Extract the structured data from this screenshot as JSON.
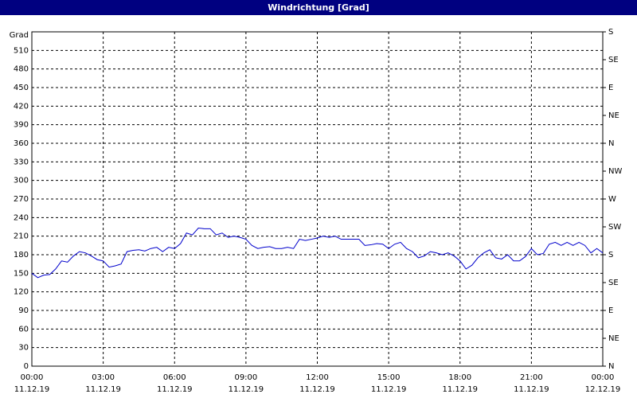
{
  "chart_data": {
    "type": "line",
    "title": "Windrichtung [Grad]",
    "y_label": "Grad",
    "x": [
      0,
      0.25,
      0.5,
      0.75,
      1,
      1.25,
      1.5,
      1.75,
      2,
      2.25,
      2.5,
      2.75,
      3,
      3.25,
      3.5,
      3.75,
      4,
      4.25,
      4.5,
      4.75,
      5,
      5.25,
      5.5,
      5.75,
      6,
      6.25,
      6.5,
      6.75,
      7,
      7.25,
      7.5,
      7.75,
      8,
      8.25,
      8.5,
      8.75,
      9,
      9.25,
      9.5,
      9.75,
      10,
      10.25,
      10.5,
      10.75,
      11,
      11.25,
      11.5,
      11.75,
      12,
      12.25,
      12.5,
      12.75,
      13,
      13.25,
      13.5,
      13.75,
      14,
      14.25,
      14.5,
      14.75,
      15,
      15.25,
      15.5,
      15.75,
      16,
      16.25,
      16.5,
      16.75,
      17,
      17.25,
      17.5,
      17.75,
      18,
      18.25,
      18.5,
      18.75,
      19,
      19.25,
      19.5,
      19.75,
      20,
      20.25,
      20.5,
      20.75,
      21,
      21.25,
      21.5,
      21.75,
      22,
      22.25,
      22.5,
      22.75,
      23,
      23.25,
      23.5,
      23.75,
      24
    ],
    "series": [
      {
        "name": "Windrichtung",
        "color": "#0000cc",
        "values": [
          150,
          143,
          147,
          148,
          157,
          170,
          168,
          178,
          185,
          183,
          178,
          172,
          170,
          160,
          162,
          165,
          185,
          187,
          188,
          186,
          190,
          192,
          185,
          192,
          190,
          198,
          215,
          212,
          223,
          222,
          222,
          212,
          215,
          208,
          210,
          208,
          205,
          195,
          190,
          192,
          193,
          190,
          190,
          192,
          190,
          205,
          203,
          205,
          207,
          210,
          208,
          210,
          205,
          205,
          205,
          205,
          195,
          196,
          198,
          197,
          190,
          197,
          200,
          190,
          185,
          175,
          178,
          185,
          183,
          180,
          183,
          178,
          170,
          157,
          163,
          175,
          183,
          188,
          175,
          173,
          180,
          170,
          170,
          177,
          190,
          180,
          182,
          197,
          200,
          195,
          200,
          195,
          200,
          195,
          183,
          190,
          183
        ]
      }
    ],
    "xlim": [
      0,
      24
    ],
    "xticks": [
      {
        "value": 0,
        "label": "00:00",
        "date": "11.12.19"
      },
      {
        "value": 3,
        "label": "03:00",
        "date": "11.12.19"
      },
      {
        "value": 6,
        "label": "06:00",
        "date": "11.12.19"
      },
      {
        "value": 9,
        "label": "09:00",
        "date": "11.12.19"
      },
      {
        "value": 12,
        "label": "12:00",
        "date": "11.12.19"
      },
      {
        "value": 15,
        "label": "15:00",
        "date": "11.12.19"
      },
      {
        "value": 18,
        "label": "18:00",
        "date": "11.12.19"
      },
      {
        "value": 21,
        "label": "21:00",
        "date": "11.12.19"
      },
      {
        "value": 24,
        "label": "00:00",
        "date": "12.12.19"
      }
    ],
    "ylim": [
      0,
      540
    ],
    "yticks": [
      0,
      30,
      60,
      90,
      120,
      150,
      180,
      210,
      240,
      270,
      300,
      330,
      360,
      390,
      420,
      450,
      480,
      510
    ],
    "y2lim": [
      0,
      540
    ],
    "y2ticks": [
      {
        "value": 0,
        "label": "N"
      },
      {
        "value": 45,
        "label": "NE"
      },
      {
        "value": 90,
        "label": "E"
      },
      {
        "value": 135,
        "label": "SE"
      },
      {
        "value": 180,
        "label": "S"
      },
      {
        "value": 225,
        "label": "SW"
      },
      {
        "value": 270,
        "label": "W"
      },
      {
        "value": 315,
        "label": "NW"
      },
      {
        "value": 360,
        "label": "N"
      },
      {
        "value": 405,
        "label": "NE"
      },
      {
        "value": 450,
        "label": "E"
      },
      {
        "value": 495,
        "label": "SE"
      },
      {
        "value": 540,
        "label": "S"
      }
    ],
    "grid": true
  }
}
